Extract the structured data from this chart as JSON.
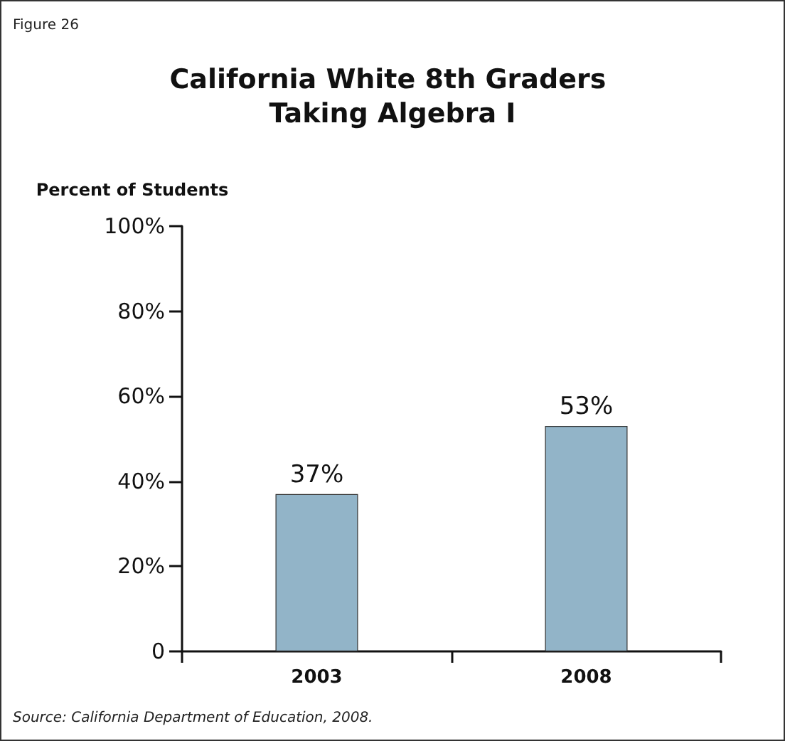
{
  "chart_data": {
    "type": "bar",
    "title": "California White 8th Graders Taking Algebra I",
    "ylabel": "Percent of Students",
    "categories": [
      "2003",
      "2008"
    ],
    "values": [
      37,
      53
    ],
    "value_labels": [
      "37%",
      "53%"
    ],
    "color": "#92b4c8",
    "ylim": [
      0,
      100
    ],
    "yticks": [
      {
        "value": 0,
        "label": "0"
      },
      {
        "value": 20,
        "label": "20%"
      },
      {
        "value": 40,
        "label": "40%"
      },
      {
        "value": 60,
        "label": "60%"
      },
      {
        "value": 80,
        "label": "80%"
      },
      {
        "value": 100,
        "label": "100%"
      }
    ],
    "grid": false,
    "annotations": [
      "Figure 26",
      "Source: California Department of Education, 2008."
    ]
  }
}
